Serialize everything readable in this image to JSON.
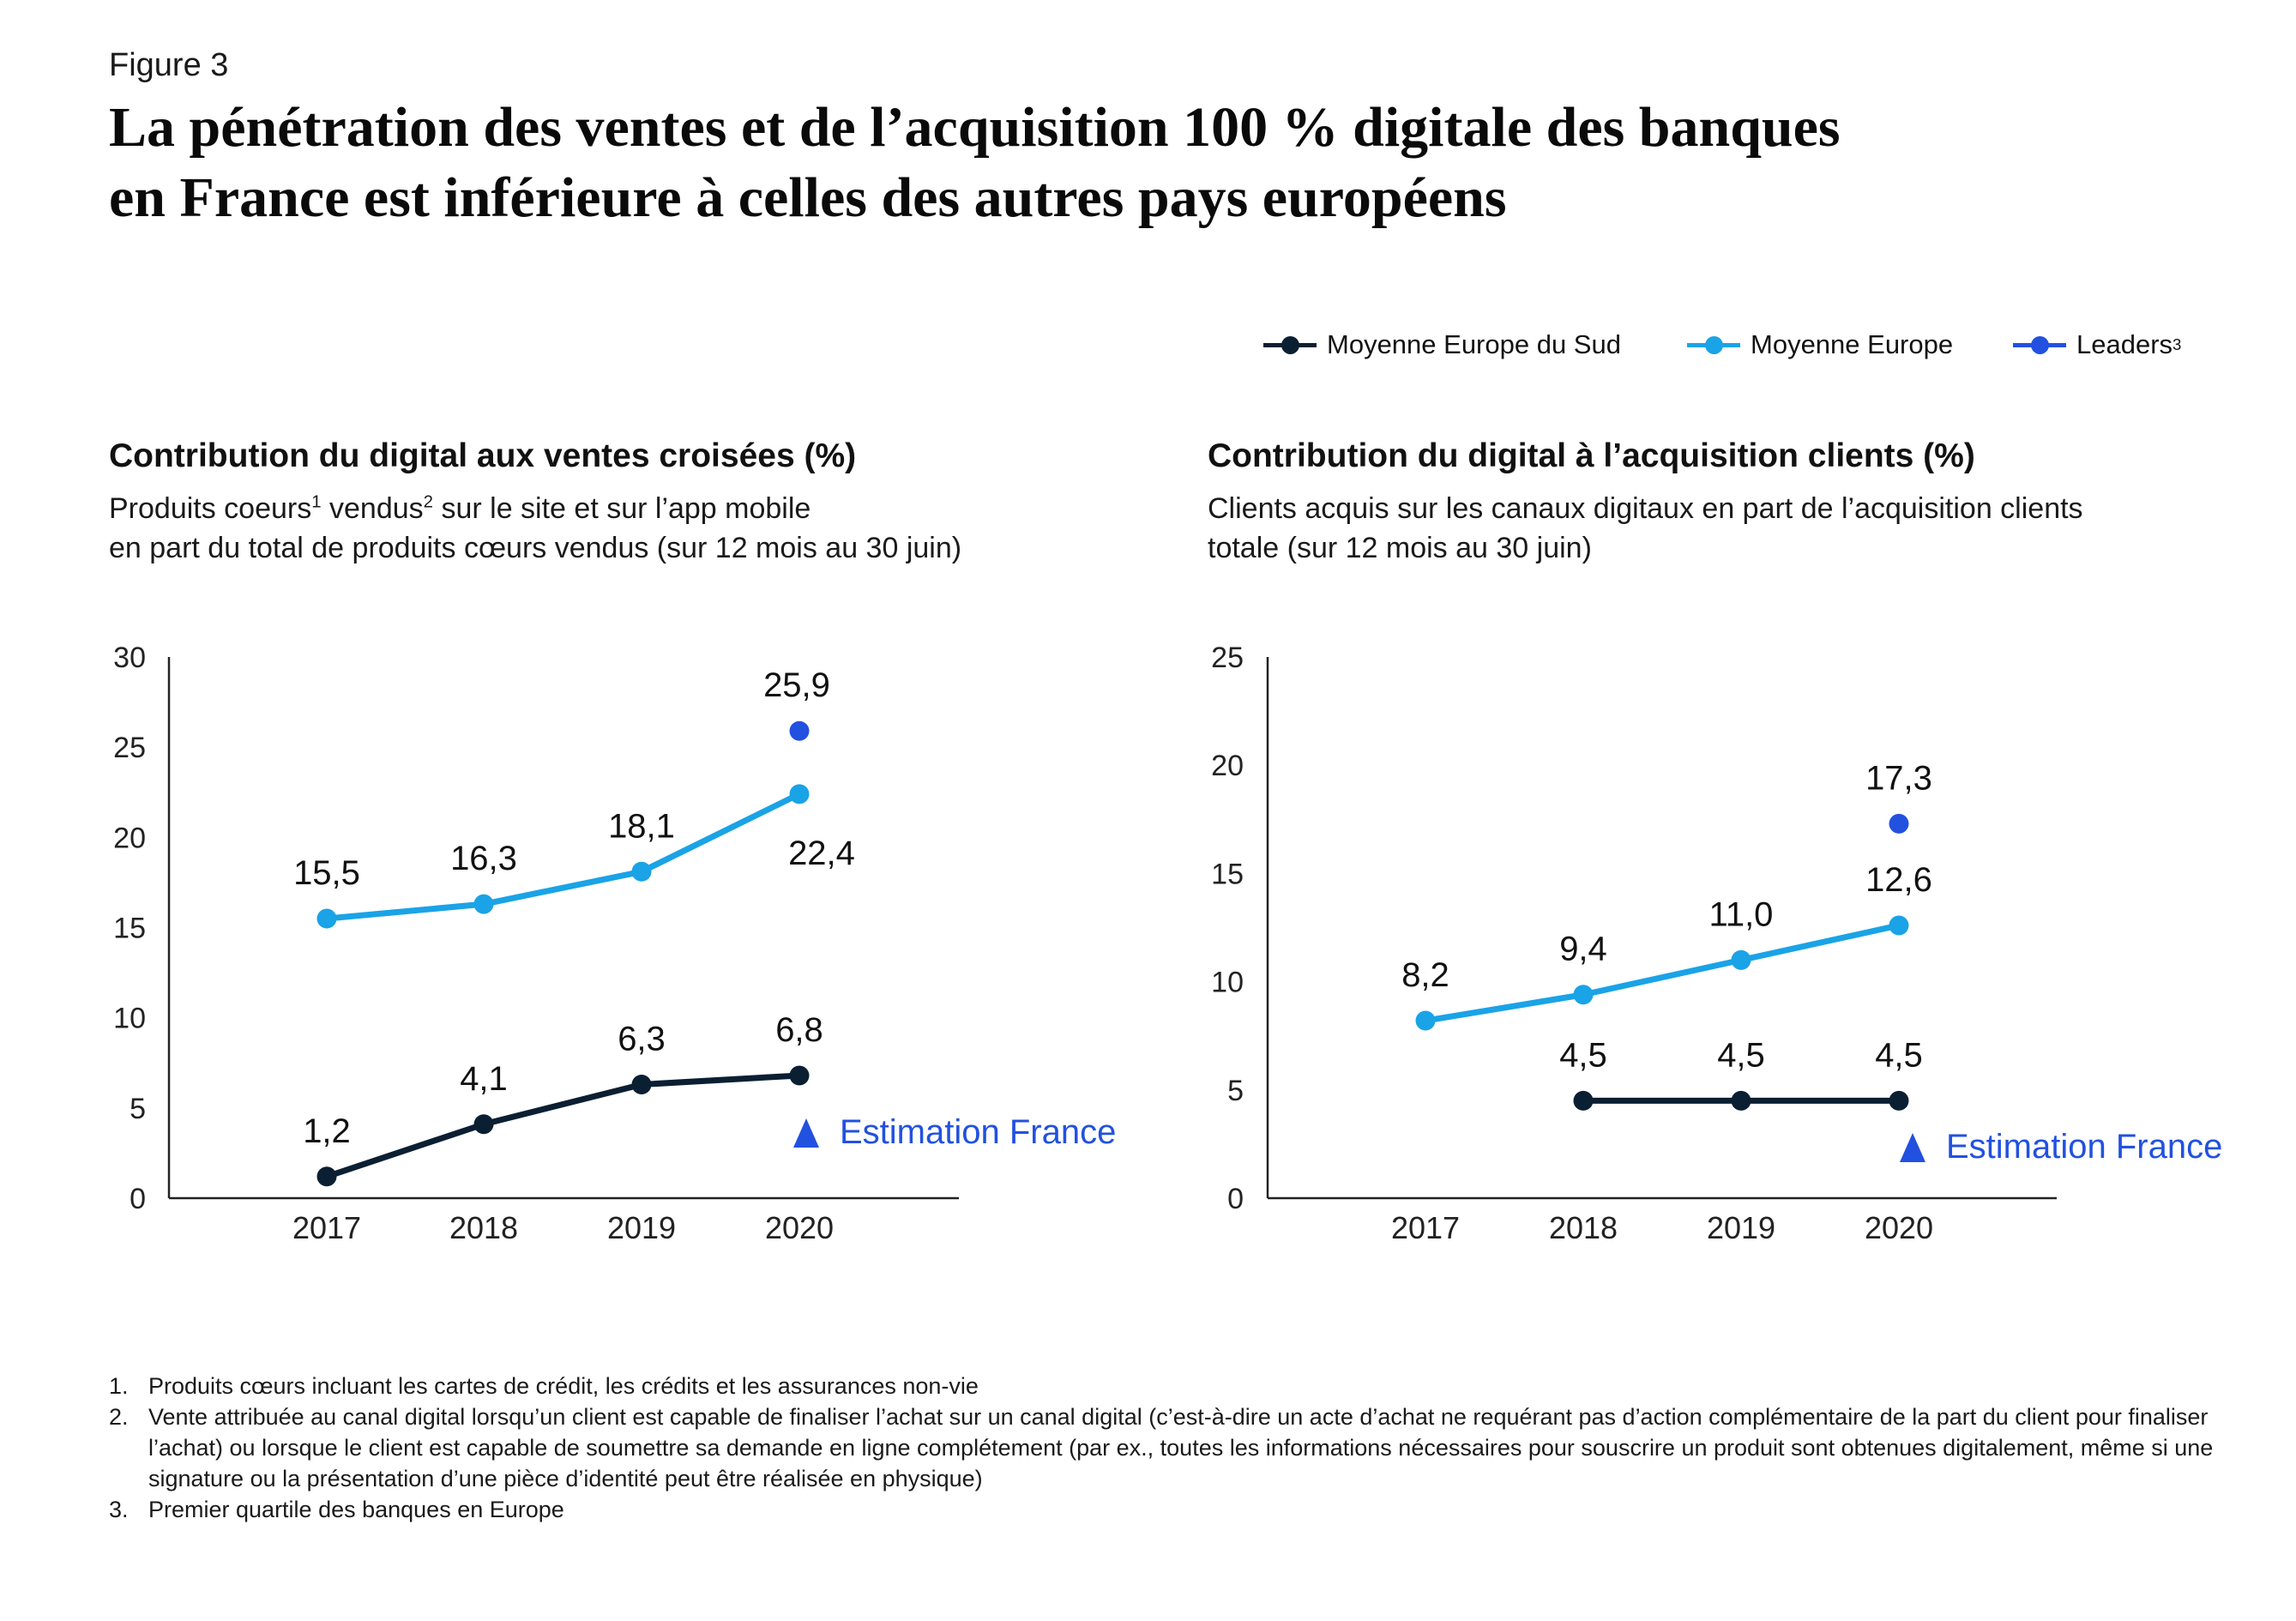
{
  "figure_label": "Figure 3",
  "title_lines": [
    "La pénétration des ventes et de l’acquisition 100 % digitale des banques",
    "en France est inférieure à celles des autres pays européens"
  ],
  "colors": {
    "south": "#0b1f33",
    "europe": "#1aa3e6",
    "leaders": "#2251e0",
    "axis": "#222222"
  },
  "legend": [
    {
      "label": "Moyenne Europe du Sud",
      "color": "#0b1f33",
      "sup": ""
    },
    {
      "label": "Moyenne Europe",
      "color": "#1aa3e6",
      "sup": ""
    },
    {
      "label": "Leaders",
      "color": "#2251e0",
      "sup": "3"
    }
  ],
  "chart_left": {
    "title": "Contribution du digital aux ventes croisées (%)",
    "subtitle_line1_a": "Produits coeurs",
    "subtitle_line1_sup1": "1",
    "subtitle_line1_b": " vendus",
    "subtitle_line1_sup2": "2",
    "subtitle_line1_c": " sur le site et sur l’app mobile",
    "subtitle_line2": "en part du total de produits cœurs vendus (sur 12 mois au 30 juin)",
    "estimate_label": "Estimation France"
  },
  "chart_right": {
    "title": "Contribution du digital à l’acquisition clients (%)",
    "subtitle_line1": "Clients acquis sur les canaux digitaux en part de l’acquisition clients",
    "subtitle_line2": "totale (sur 12 mois au 30 juin)",
    "estimate_label": "Estimation France"
  },
  "chart_data": [
    {
      "type": "line",
      "title": "Contribution du digital aux ventes croisées (%)",
      "x": [
        "2017",
        "2018",
        "2019",
        "2020"
      ],
      "ylim": [
        0,
        30
      ],
      "yticks": [
        0,
        5,
        10,
        15,
        20,
        25,
        30
      ],
      "grid": false,
      "series": [
        {
          "name": "Moyenne Europe",
          "color": "#1aa3e6",
          "values": [
            15.5,
            16.3,
            18.1,
            22.4
          ],
          "labels": [
            "15,5",
            "16,3",
            "18,1",
            "22,4"
          ]
        },
        {
          "name": "Moyenne Europe du Sud",
          "color": "#0b1f33",
          "values": [
            1.2,
            4.1,
            6.3,
            6.8
          ],
          "labels": [
            "1,2",
            "4,1",
            "6,3",
            "6,8"
          ]
        },
        {
          "name": "Leaders",
          "color": "#2251e0",
          "values": [
            null,
            null,
            null,
            25.9
          ],
          "labels": [
            "",
            "",
            "",
            "25,9"
          ]
        }
      ]
    },
    {
      "type": "line",
      "title": "Contribution du digital à l’acquisition clients (%)",
      "x": [
        "2017",
        "2018",
        "2019",
        "2020"
      ],
      "ylim": [
        0,
        25
      ],
      "yticks": [
        0,
        5,
        10,
        15,
        20,
        25
      ],
      "grid": false,
      "series": [
        {
          "name": "Moyenne Europe",
          "color": "#1aa3e6",
          "values": [
            8.2,
            9.4,
            11.0,
            12.6
          ],
          "labels": [
            "8,2",
            "9,4",
            "11,0",
            "12,6"
          ]
        },
        {
          "name": "Moyenne Europe du Sud",
          "color": "#0b1f33",
          "values": [
            null,
            4.5,
            4.5,
            4.5
          ],
          "labels": [
            "",
            "4,5",
            "4,5",
            "4,5"
          ]
        },
        {
          "name": "Leaders",
          "color": "#2251e0",
          "values": [
            null,
            null,
            null,
            17.3
          ],
          "labels": [
            "",
            "",
            "",
            "17,3"
          ]
        }
      ]
    }
  ],
  "footnotes": [
    {
      "num": "1.",
      "text": "Produits cœurs incluant les cartes de crédit, les crédits et les assurances non-vie"
    },
    {
      "num": "2.",
      "text": "Vente attribuée au canal digital lorsqu’un client est capable de finaliser l’achat sur un canal digital (c’est-à-dire un acte d’achat ne requérant pas d’action complémentaire de la part du client pour finaliser l’achat) ou lorsque le client est capable de soumettre sa demande en ligne complétement (par ex., toutes les informations nécessaires pour souscrire un produit sont obtenues digitalement, même si une signature ou la présentation d’une pièce d’identité peut être réalisée en physique)"
    },
    {
      "num": "3.",
      "text": "Premier quartile des banques en Europe"
    }
  ]
}
